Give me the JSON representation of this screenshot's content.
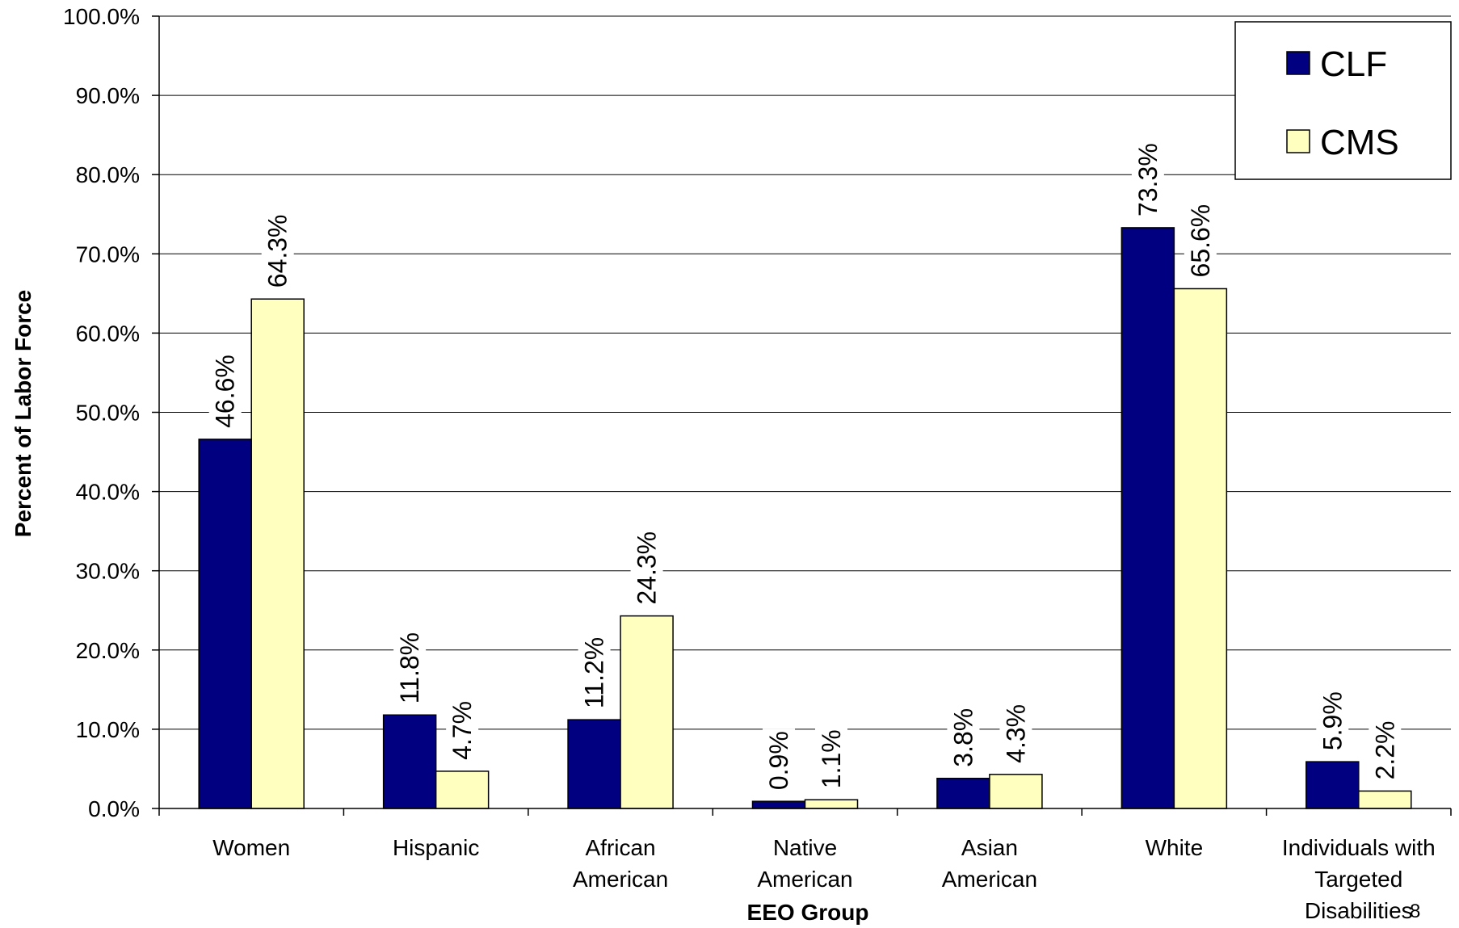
{
  "chart_data": {
    "type": "bar",
    "xlabel": "EEO Group",
    "ylabel": "Percent of Labor Force",
    "ylim": [
      0,
      100
    ],
    "y_ticks": [
      "0.0%",
      "10.0%",
      "20.0%",
      "30.0%",
      "40.0%",
      "50.0%",
      "60.0%",
      "70.0%",
      "80.0%",
      "90.0%",
      "100.0%"
    ],
    "categories": [
      [
        "Women"
      ],
      [
        "Hispanic"
      ],
      [
        "African",
        "American"
      ],
      [
        "Native",
        "American"
      ],
      [
        "Asian",
        "American"
      ],
      [
        "White"
      ],
      [
        "Individuals with",
        "Targeted",
        "Disabilities"
      ]
    ],
    "series": [
      {
        "name": "CLF",
        "color": "#000080",
        "values": [
          46.6,
          11.8,
          11.2,
          0.9,
          3.8,
          73.3,
          5.9
        ],
        "labels": [
          "46.6%",
          "11.8%",
          "11.2%",
          "0.9%",
          "3.8%",
          "73.3%",
          "5.9%"
        ]
      },
      {
        "name": "CMS",
        "color": "#FFFFC0",
        "values": [
          64.3,
          4.7,
          24.3,
          1.1,
          4.3,
          65.6,
          2.2
        ],
        "labels": [
          "64.3%",
          "4.7%",
          "24.3%",
          "1.1%",
          "4.3%",
          "65.6%",
          "2.2%"
        ]
      }
    ],
    "grid": true,
    "legend_position": "top-right",
    "page_number": "8"
  }
}
